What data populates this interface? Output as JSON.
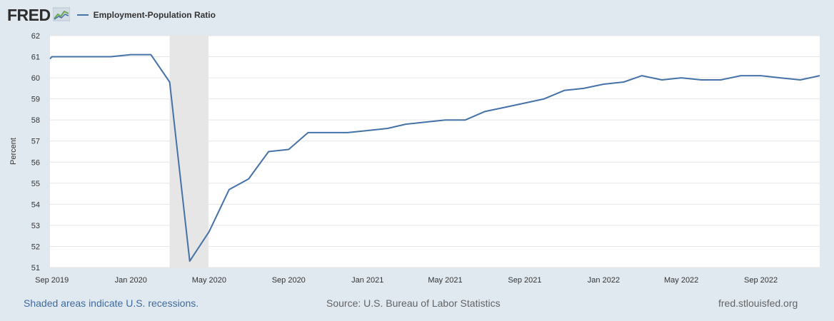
{
  "header": {
    "logo_text": "FRED",
    "legend_label": "Employment-Population Ratio"
  },
  "footer": {
    "recession_note": "Shaded areas indicate U.S. recessions.",
    "source": "Source: U.S. Bureau of Labor Statistics",
    "site": "fred.stlouisfed.org"
  },
  "colors": {
    "line": "#4572a7",
    "recession_shade": "#e6e6e6",
    "grid": "#e6e6e6",
    "background": "#e1e9f0",
    "plot_background": "#ffffff"
  },
  "chart_data": {
    "type": "line",
    "title": "",
    "xlabel": "",
    "ylabel": "Percent",
    "ylim": [
      51,
      62
    ],
    "yticks": [
      51,
      52,
      53,
      54,
      55,
      56,
      57,
      58,
      59,
      60,
      61,
      62
    ],
    "grid": true,
    "legend": "top-left",
    "xlim": [
      "2019-08-29",
      "2022-12-01"
    ],
    "xticks": [
      {
        "date": "2019-09-01",
        "label": "Sep 2019"
      },
      {
        "date": "2020-01-01",
        "label": "Jan 2020"
      },
      {
        "date": "2020-05-01",
        "label": "May 2020"
      },
      {
        "date": "2020-09-01",
        "label": "Sep 2020"
      },
      {
        "date": "2021-01-01",
        "label": "Jan 2021"
      },
      {
        "date": "2021-05-01",
        "label": "May 2021"
      },
      {
        "date": "2021-09-01",
        "label": "Sep 2021"
      },
      {
        "date": "2022-01-01",
        "label": "Jan 2022"
      },
      {
        "date": "2022-05-01",
        "label": "May 2022"
      },
      {
        "date": "2022-09-01",
        "label": "Sep 2022"
      }
    ],
    "recessions": [
      {
        "start": "2020-03-01",
        "end": "2020-04-30"
      }
    ],
    "series": [
      {
        "name": "Employment-Population Ratio",
        "x": [
          "2019-08-01",
          "2019-09-01",
          "2019-10-01",
          "2019-11-01",
          "2019-12-01",
          "2020-01-01",
          "2020-02-01",
          "2020-03-01",
          "2020-04-01",
          "2020-05-01",
          "2020-06-01",
          "2020-07-01",
          "2020-08-01",
          "2020-09-01",
          "2020-10-01",
          "2020-11-01",
          "2020-12-01",
          "2021-01-01",
          "2021-02-01",
          "2021-03-01",
          "2021-04-01",
          "2021-05-01",
          "2021-06-01",
          "2021-07-01",
          "2021-08-01",
          "2021-09-01",
          "2021-10-01",
          "2021-11-01",
          "2021-12-01",
          "2022-01-01",
          "2022-02-01",
          "2022-03-01",
          "2022-04-01",
          "2022-05-01",
          "2022-06-01",
          "2022-07-01",
          "2022-08-01",
          "2022-09-01",
          "2022-10-01",
          "2022-11-01",
          "2022-12-01"
        ],
        "values": [
          60.9,
          61.0,
          61.0,
          61.0,
          61.0,
          61.1,
          61.1,
          59.8,
          51.3,
          52.7,
          54.7,
          55.2,
          56.5,
          56.6,
          57.4,
          57.4,
          57.4,
          57.5,
          57.6,
          57.8,
          57.9,
          58.0,
          58.0,
          58.4,
          58.6,
          58.8,
          59.0,
          59.4,
          59.5,
          59.7,
          59.8,
          60.1,
          59.9,
          60.0,
          59.9,
          59.9,
          60.1,
          60.1,
          60.0,
          59.9,
          60.1
        ]
      }
    ]
  }
}
